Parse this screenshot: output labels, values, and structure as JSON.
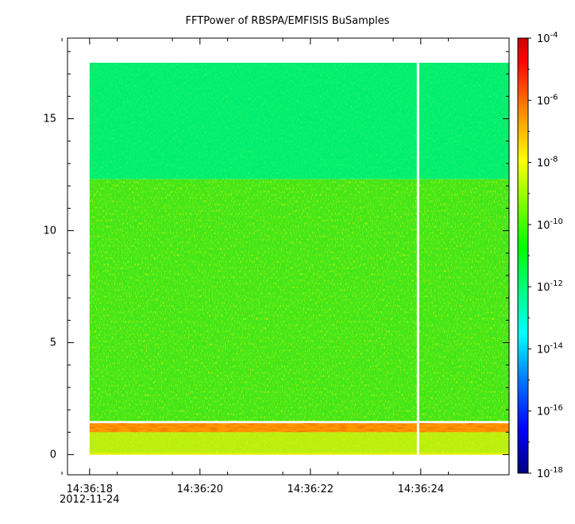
{
  "chart_data": {
    "type": "heatmap",
    "title": "FFTPower of RBSPA/EMFISIS  BuSamples",
    "xlabel": "",
    "ylabel": "",
    "x_ticks": [
      {
        "time": "14:36:18",
        "sublabel": "2012-11-24"
      },
      {
        "time": "14:36:20",
        "sublabel": ""
      },
      {
        "time": "14:36:22",
        "sublabel": ""
      },
      {
        "time": "14:36:24",
        "sublabel": ""
      }
    ],
    "x_minor_ticks_seconds": [
      17.5,
      18.5,
      19.5,
      20.5,
      21.5,
      22.5,
      23.5,
      24.5
    ],
    "xlim_seconds_after_14_36": [
      17.6,
      25.6
    ],
    "data_x_range_seconds_after_14_36": [
      18.0,
      25.6
    ],
    "gap_at_seconds_after_14_36": 23.95,
    "y_ticks": [
      "0",
      "5",
      "10",
      "15"
    ],
    "ylim": [
      -0.9,
      18.6
    ],
    "data_y_range": [
      0.0,
      17.5
    ],
    "colorbar": {
      "scale": "log",
      "range": [
        1e-18,
        0.0001
      ],
      "tick_labels": [
        {
          "base": "10",
          "exp": "-4"
        },
        {
          "base": "10",
          "exp": "-6"
        },
        {
          "base": "10",
          "exp": "-8"
        },
        {
          "base": "10",
          "exp": "-10"
        },
        {
          "base": "10",
          "exp": "-12"
        },
        {
          "base": "10",
          "exp": "-14"
        },
        {
          "base": "10",
          "exp": "-16"
        },
        {
          "base": "10",
          "exp": "-18"
        }
      ],
      "colormap": [
        "#00007f",
        "#0000ff",
        "#0080ff",
        "#00ffff",
        "#00ff80",
        "#00ff00",
        "#80ff00",
        "#ffff00",
        "#ff8000",
        "#ff0000",
        "#cc0000"
      ]
    },
    "bands": [
      {
        "y_range": [
          12.3,
          17.5
        ],
        "typical_power": 1e-12
      },
      {
        "y_range": [
          1.5,
          12.3
        ],
        "typical_power": 1e-10
      },
      {
        "y_range": [
          1.0,
          1.4
        ],
        "typical_power": 1e-07
      },
      {
        "y_range": [
          0.0,
          1.0
        ],
        "typical_power": 1e-09
      }
    ]
  }
}
